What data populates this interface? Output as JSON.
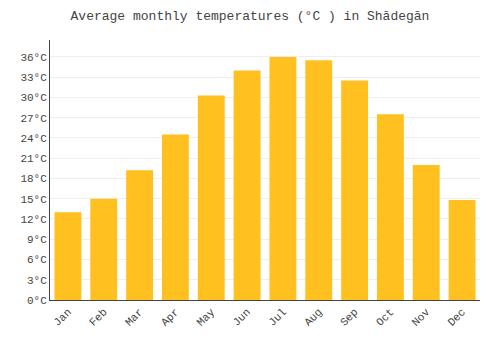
{
  "chart_data": {
    "type": "bar",
    "title": "Average monthly temperatures (°C ) in Shādegān",
    "categories": [
      "Jan",
      "Feb",
      "Mar",
      "Apr",
      "May",
      "Jun",
      "Jul",
      "Aug",
      "Sep",
      "Oct",
      "Nov",
      "Dec"
    ],
    "values": [
      13.0,
      15.0,
      19.2,
      24.5,
      30.3,
      34.0,
      36.0,
      35.5,
      32.5,
      27.5,
      20.0,
      14.8
    ],
    "color": "#FFC020",
    "ylim": [
      0,
      38.5
    ],
    "yticks": [
      {
        "value": 0,
        "label": "0°C"
      },
      {
        "value": 3,
        "label": "3°C"
      },
      {
        "value": 6,
        "label": "6°C"
      },
      {
        "value": 9,
        "label": "9°C"
      },
      {
        "value": 12,
        "label": "12°C"
      },
      {
        "value": 15,
        "label": "15°C"
      },
      {
        "value": 18,
        "label": "18°C"
      },
      {
        "value": 21,
        "label": "21°C"
      },
      {
        "value": 24,
        "label": "24°C"
      },
      {
        "value": 27,
        "label": "27°C"
      },
      {
        "value": 30,
        "label": "30°C"
      },
      {
        "value": 33,
        "label": "33°C"
      },
      {
        "value": 36,
        "label": "36°C"
      }
    ],
    "grid": true
  }
}
